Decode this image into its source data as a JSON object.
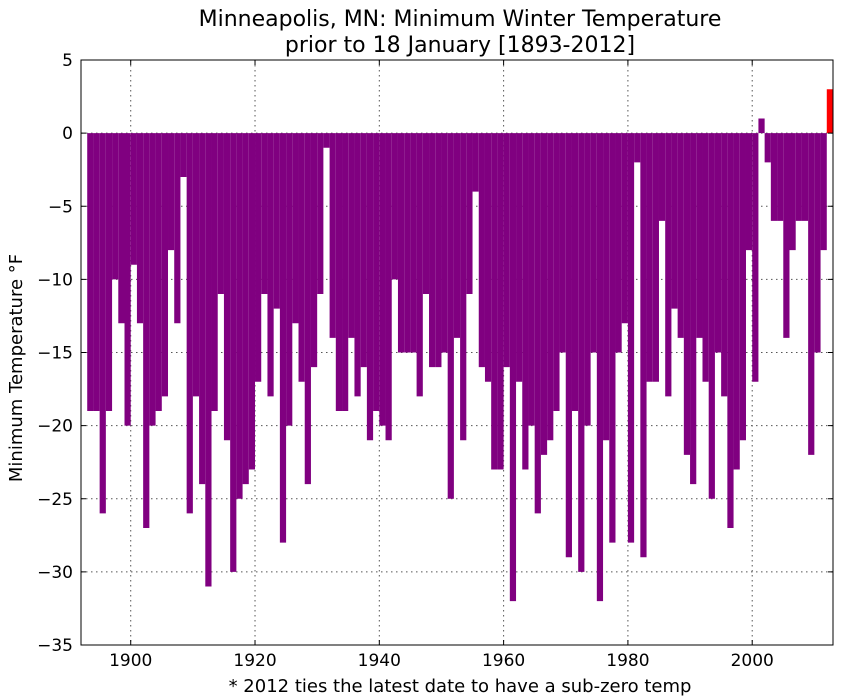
{
  "chart_data": {
    "type": "bar",
    "title": "Minneapolis, MN: Minimum Winter Temperature",
    "subtitle": "prior to 18 January [1893-2012]",
    "ylabel": "Minimum Temperature °F",
    "xlabel": "* 2012 ties the latest date to have a sub-zero temp",
    "xlim": [
      1892,
      2013
    ],
    "ylim": [
      -35,
      5
    ],
    "xticks": [
      1900,
      1920,
      1940,
      1960,
      1980,
      2000
    ],
    "yticks": [
      5,
      0,
      -5,
      -10,
      -15,
      -20,
      -25,
      -30,
      -35
    ],
    "grid": true,
    "bar_color": "#800080",
    "highlight_color": "#ff0000",
    "highlight_year": 2012,
    "series": [
      {
        "x": [
          1893,
          1894,
          1895,
          1896,
          1897,
          1898,
          1899,
          1900,
          1901,
          1902,
          1903,
          1904,
          1905,
          1906,
          1907,
          1908,
          1909,
          1910,
          1911,
          1912,
          1913,
          1914,
          1915,
          1916,
          1917,
          1918,
          1919,
          1920,
          1921,
          1922,
          1923,
          1924,
          1925,
          1926,
          1927,
          1928,
          1929,
          1930,
          1931,
          1932,
          1933,
          1934,
          1935,
          1936,
          1937,
          1938,
          1939,
          1940,
          1941,
          1942,
          1943,
          1944,
          1945,
          1946,
          1947,
          1948,
          1949,
          1950,
          1951,
          1952,
          1953,
          1954,
          1955,
          1956,
          1957,
          1958,
          1959,
          1960,
          1961,
          1962,
          1963,
          1964,
          1965,
          1966,
          1967,
          1968,
          1969,
          1970,
          1971,
          1972,
          1973,
          1974,
          1975,
          1976,
          1977,
          1978,
          1979,
          1980,
          1981,
          1982,
          1983,
          1984,
          1985,
          1986,
          1987,
          1988,
          1989,
          1990,
          1991,
          1992,
          1993,
          1994,
          1995,
          1996,
          1997,
          1998,
          1999,
          2000,
          2001,
          2002,
          2003,
          2004,
          2005,
          2006,
          2007,
          2008,
          2009,
          2010,
          2011,
          2012
        ],
        "values": [
          -19,
          -19,
          -26,
          -19,
          -10,
          -13,
          -20,
          -9,
          -13,
          -27,
          -20,
          -19,
          -18,
          -8,
          -13,
          -3,
          -26,
          -18,
          -24,
          -31,
          -19,
          -11,
          -21,
          -30,
          -25,
          -24,
          -23,
          -17,
          -11,
          -18,
          -12,
          -28,
          -20,
          -13,
          -17,
          -24,
          -16,
          -11,
          -1,
          -14,
          -19,
          -19,
          -14,
          -18,
          -16,
          -21,
          -19,
          -20,
          -21,
          -10,
          -15,
          -15,
          -15,
          -18,
          -11,
          -16,
          -16,
          -15,
          -25,
          -14,
          -21,
          -11,
          -4,
          -16,
          -17,
          -23,
          -23,
          -16,
          -32,
          -17,
          -23,
          -20,
          -26,
          -22,
          -21,
          -19,
          -15,
          -29,
          -19,
          -30,
          -20,
          -15,
          -32,
          -21,
          -28,
          -15,
          -13,
          -28,
          -2,
          -29,
          -17,
          -17,
          -6,
          -18,
          -12,
          -14,
          -22,
          -24,
          -14,
          -17,
          -25,
          -15,
          -18,
          -27,
          -23,
          -21,
          -8,
          -17,
          1,
          -2,
          -6,
          -6,
          -14,
          -8,
          -6,
          -6,
          -22,
          -15,
          -8,
          3
        ]
      }
    ]
  }
}
